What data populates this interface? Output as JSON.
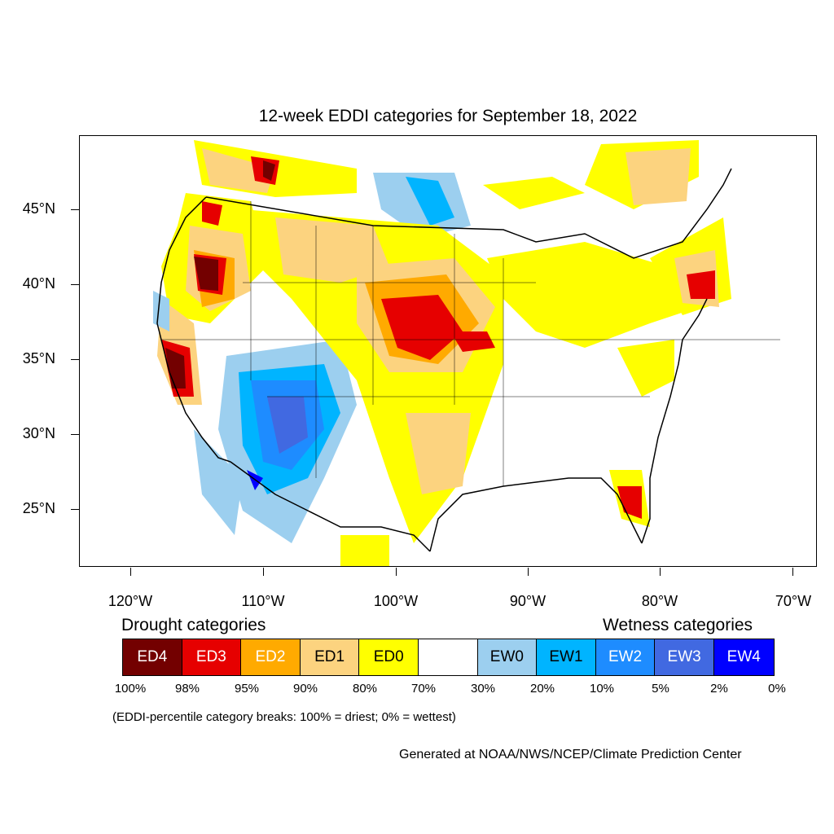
{
  "title": "12-week EDDI categories for September 18, 2022",
  "lat_labels": [
    "45°N",
    "40°N",
    "35°N",
    "30°N",
    "25°N"
  ],
  "lon_labels": [
    "120°W",
    "110°W",
    "100°W",
    "90°W",
    "80°W",
    "70°W"
  ],
  "drought_heading": "Drought categories",
  "wetness_heading": "Wetness categories",
  "legend": [
    {
      "label": "ED4",
      "color": "#730000",
      "text_color": "#ffffff"
    },
    {
      "label": "ED3",
      "color": "#e60000",
      "text_color": "#ffffff"
    },
    {
      "label": "ED2",
      "color": "#ffaa00",
      "text_color": "#ffffff"
    },
    {
      "label": "ED1",
      "color": "#fcd37f",
      "text_color": "#000000"
    },
    {
      "label": "ED0",
      "color": "#ffff00",
      "text_color": "#000000"
    },
    {
      "label": "",
      "color": "#ffffff",
      "text_color": "#000000"
    },
    {
      "label": "EW0",
      "color": "#9ccfef",
      "text_color": "#000000"
    },
    {
      "label": "EW1",
      "color": "#00b4ff",
      "text_color": "#000000"
    },
    {
      "label": "EW2",
      "color": "#1e8cff",
      "text_color": "#ffffff"
    },
    {
      "label": "EW3",
      "color": "#4169e1",
      "text_color": "#ffffff"
    },
    {
      "label": "EW4",
      "color": "#0000ff",
      "text_color": "#ffffff"
    }
  ],
  "percentiles": [
    "100%",
    "98%",
    "95%",
    "90%",
    "80%",
    "70%",
    "30%",
    "20%",
    "10%",
    "5%",
    "2%",
    "0%"
  ],
  "note": "(EDDI-percentile category breaks: 100% = driest; 0% = wettest)",
  "credit": "Generated at NOAA/NWS/NCEP/Climate Prediction Center"
}
